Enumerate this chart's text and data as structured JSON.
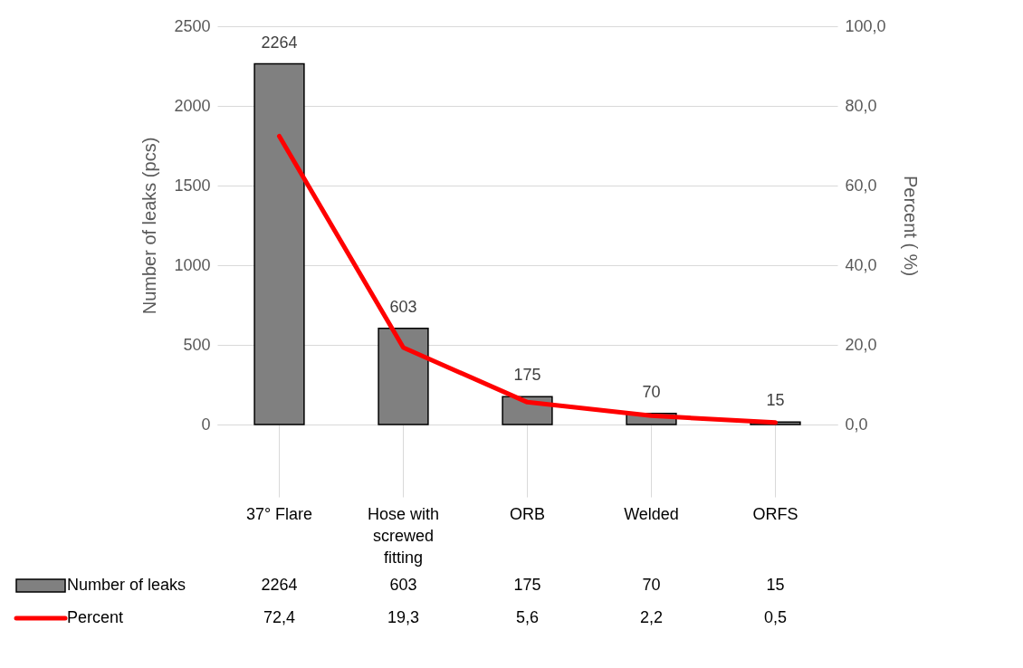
{
  "chart_data": {
    "type": "bar",
    "categories": [
      "37° Flare",
      "Hose with screwed fitting",
      "ORB",
      "Welded",
      "ORFS"
    ],
    "series": [
      {
        "name": "Number of leaks",
        "color": "#808080",
        "values": [
          2264,
          603,
          175,
          70,
          15
        ],
        "value_labels": [
          "2264",
          "603",
          "175",
          "70",
          "15"
        ]
      },
      {
        "name": "Percent",
        "type": "line",
        "axis": "y2",
        "color": "#ff0000",
        "values": [
          72.4,
          19.3,
          5.6,
          2.2,
          0.5
        ],
        "value_labels": [
          "72,4",
          "19,3",
          "5,6",
          "2,2",
          "0,5"
        ]
      }
    ],
    "ylabel": "Number of leaks (pcs)",
    "y2label": "Percent ( %)",
    "ylim": [
      0,
      2500
    ],
    "yticks": [
      0,
      500,
      1000,
      1500,
      2000,
      2500
    ],
    "y2lim": [
      0,
      100
    ],
    "y2ticks": [
      {
        "value": 0,
        "label": "0,0"
      },
      {
        "value": 20,
        "label": "20,0"
      },
      {
        "value": 40,
        "label": "40,0"
      },
      {
        "value": 60,
        "label": "60,0"
      },
      {
        "value": 80,
        "label": "80,0"
      },
      {
        "value": 100,
        "label": "100,0"
      }
    ],
    "grid": "y",
    "legend": "bottom left",
    "marker": "none",
    "line_style": "solid"
  }
}
